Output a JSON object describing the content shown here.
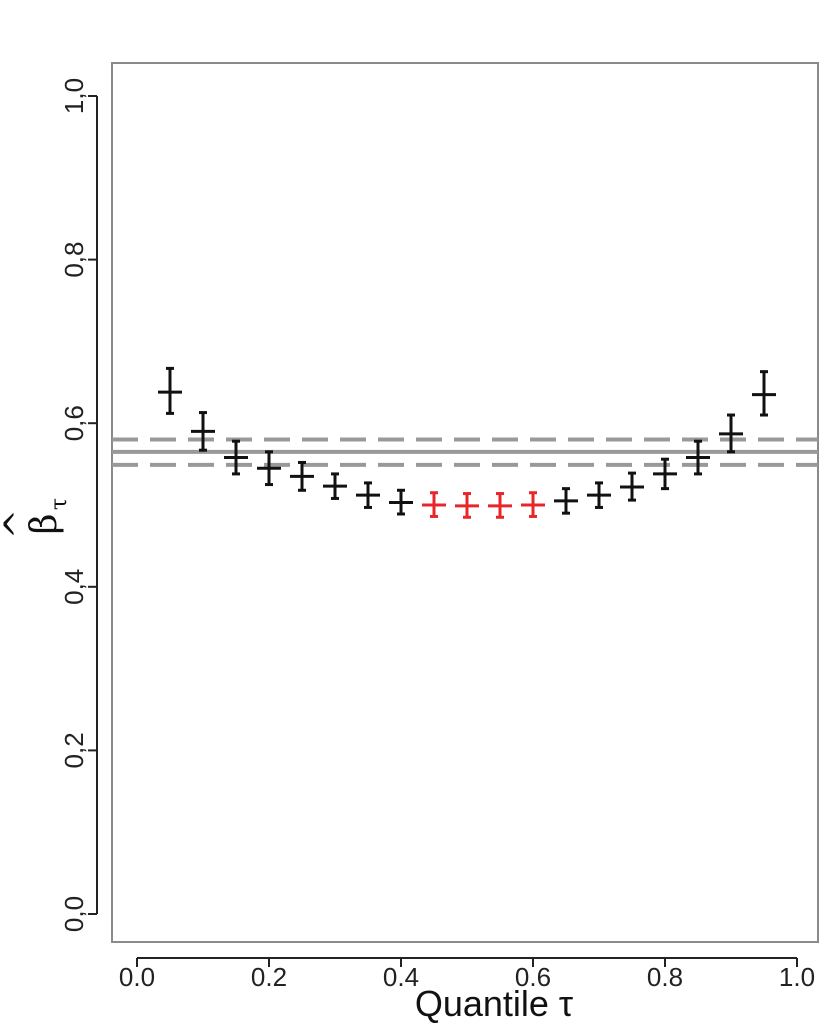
{
  "chart_data": {
    "type": "scatter",
    "xlabel": "Quantile τ",
    "ylabel": "β",
    "ylabel_hat": "^",
    "ylabel_sub": "τ",
    "xlim": [
      0.0,
      1.0
    ],
    "ylim": [
      0.0,
      1.0
    ],
    "x_ticks": [
      0.0,
      0.2,
      0.4,
      0.6,
      0.8,
      1.0
    ],
    "x_tick_labels": [
      "0.0",
      "0.2",
      "0.4",
      "0.6",
      "0.8",
      "1.0"
    ],
    "y_ticks": [
      0.0,
      0.2,
      0.4,
      0.6,
      0.8,
      1.0
    ],
    "y_tick_labels": [
      "0,0",
      "0,2",
      "0,4",
      "0,6",
      "0,8",
      "1,0"
    ],
    "grid": false,
    "reference_line": 0.565,
    "reference_band": [
      0.549,
      0.58
    ],
    "points": [
      {
        "x": 0.05,
        "y": 0.638,
        "lo": 0.612,
        "hi": 0.667,
        "highlight": false
      },
      {
        "x": 0.1,
        "y": 0.59,
        "lo": 0.567,
        "hi": 0.613,
        "highlight": false
      },
      {
        "x": 0.15,
        "y": 0.558,
        "lo": 0.538,
        "hi": 0.578,
        "highlight": false
      },
      {
        "x": 0.2,
        "y": 0.545,
        "lo": 0.525,
        "hi": 0.565,
        "highlight": false
      },
      {
        "x": 0.25,
        "y": 0.535,
        "lo": 0.518,
        "hi": 0.552,
        "highlight": false
      },
      {
        "x": 0.3,
        "y": 0.523,
        "lo": 0.508,
        "hi": 0.538,
        "highlight": false
      },
      {
        "x": 0.35,
        "y": 0.512,
        "lo": 0.497,
        "hi": 0.527,
        "highlight": false
      },
      {
        "x": 0.4,
        "y": 0.503,
        "lo": 0.489,
        "hi": 0.518,
        "highlight": false
      },
      {
        "x": 0.45,
        "y": 0.5,
        "lo": 0.486,
        "hi": 0.515,
        "highlight": true
      },
      {
        "x": 0.5,
        "y": 0.499,
        "lo": 0.485,
        "hi": 0.514,
        "highlight": true
      },
      {
        "x": 0.55,
        "y": 0.499,
        "lo": 0.485,
        "hi": 0.514,
        "highlight": true
      },
      {
        "x": 0.6,
        "y": 0.5,
        "lo": 0.486,
        "hi": 0.515,
        "highlight": true
      },
      {
        "x": 0.65,
        "y": 0.505,
        "lo": 0.49,
        "hi": 0.52,
        "highlight": false
      },
      {
        "x": 0.7,
        "y": 0.512,
        "lo": 0.497,
        "hi": 0.527,
        "highlight": false
      },
      {
        "x": 0.75,
        "y": 0.522,
        "lo": 0.506,
        "hi": 0.539,
        "highlight": false
      },
      {
        "x": 0.8,
        "y": 0.538,
        "lo": 0.52,
        "hi": 0.556,
        "highlight": false
      },
      {
        "x": 0.85,
        "y": 0.558,
        "lo": 0.538,
        "hi": 0.578,
        "highlight": false
      },
      {
        "x": 0.9,
        "y": 0.587,
        "lo": 0.565,
        "hi": 0.61,
        "highlight": false
      },
      {
        "x": 0.95,
        "y": 0.635,
        "lo": 0.61,
        "hi": 0.663,
        "highlight": false
      }
    ],
    "colors": {
      "point": "#111111",
      "highlight": "#e8262a",
      "reference": "#999999",
      "frame": "#8a8a8a"
    }
  }
}
